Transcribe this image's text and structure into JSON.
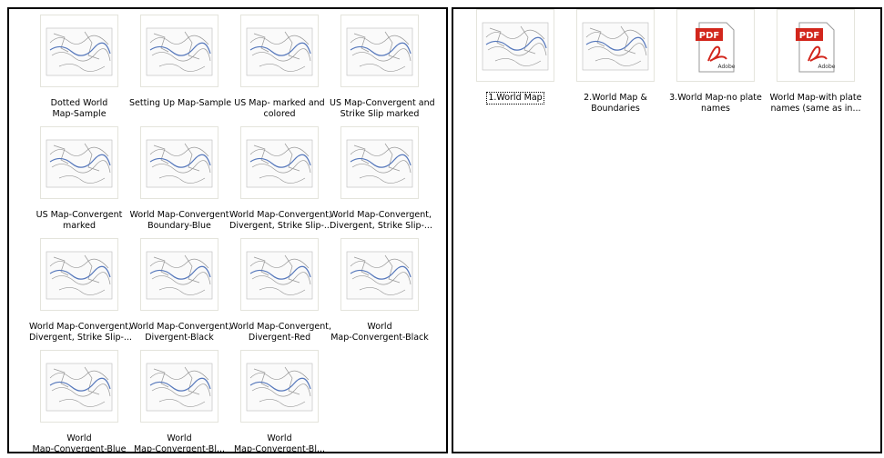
{
  "left_panel": {
    "items": [
      {
        "lines": [
          "Dotted World",
          "Map-Sample"
        ]
      },
      {
        "lines": [
          "Setting Up Map-Sample"
        ]
      },
      {
        "lines": [
          "US Map- marked and",
          "colored"
        ]
      },
      {
        "lines": [
          "US Map-Convergent and",
          "Strike Slip marked"
        ]
      },
      {
        "lines": [
          "US Map-Convergent",
          "marked"
        ]
      },
      {
        "lines": [
          "World Map-Convergent",
          "Boundary-Blue"
        ]
      },
      {
        "lines": [
          "World Map-Convergent,",
          "Divergent, Strike Slip-..."
        ]
      },
      {
        "lines": [
          "World Map-Convergent,",
          "Divergent, Strike Slip-..."
        ]
      },
      {
        "lines": [
          "World Map-Convergent,",
          "Divergent, Strike Slip-..."
        ]
      },
      {
        "lines": [
          "World Map-Convergent,",
          "Divergent-Black"
        ]
      },
      {
        "lines": [
          "World Map-Convergent,",
          "Divergent-Red"
        ]
      },
      {
        "lines": [
          "World",
          "Map-Convergent-Black"
        ]
      },
      {
        "lines": [
          "World",
          "Map-Convergent-Blue"
        ]
      },
      {
        "lines": [
          "World",
          "Map-Convergent-Bl..."
        ]
      },
      {
        "lines": [
          "World",
          "Map-Convergent-Bl..."
        ]
      }
    ]
  },
  "right_panel": {
    "items": [
      {
        "lines": [
          "1.World Map"
        ]
      },
      {
        "lines": [
          "2.World Map &",
          "Boundaries"
        ]
      },
      {
        "lines": [
          "3.World Map-no plate",
          "names"
        ],
        "icon": {
          "badge": "PDF",
          "brand": "Adobe"
        }
      },
      {
        "lines": [
          "World Map-with plate",
          "names (same as in..."
        ],
        "icon": {
          "badge": "PDF",
          "brand": "Adobe"
        }
      }
    ]
  }
}
